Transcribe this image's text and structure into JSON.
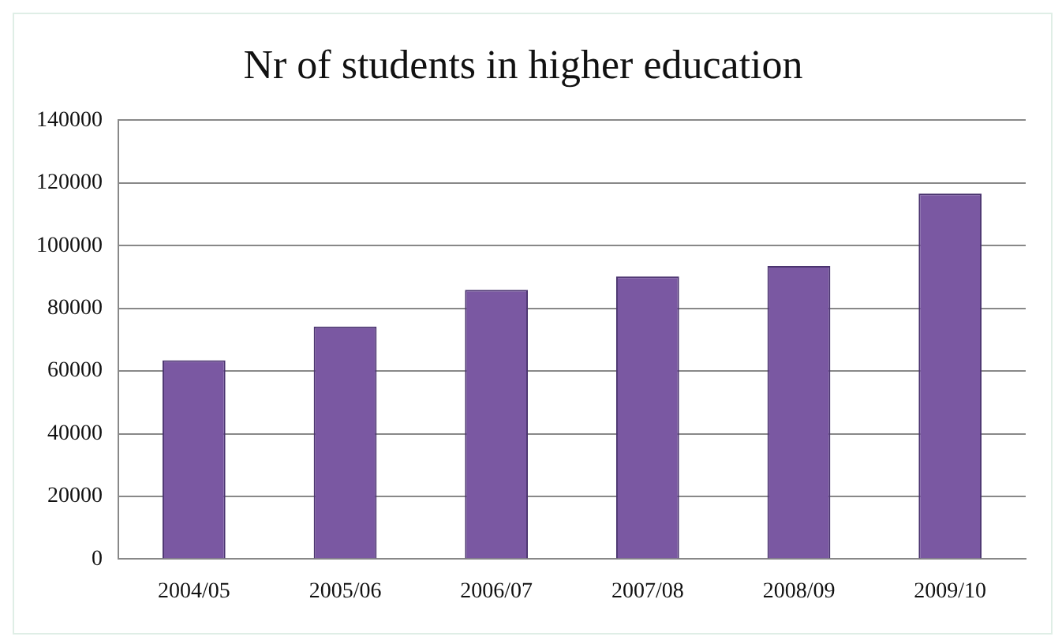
{
  "chart_data": {
    "type": "bar",
    "title": "Nr of students in higher education",
    "categories": [
      "2004/05",
      "2005/06",
      "2006/07",
      "2007/08",
      "2008/09",
      "2009/10"
    ],
    "values": [
      63400,
      74200,
      85900,
      90200,
      93500,
      116600
    ],
    "color": "#7a58a2",
    "ylim": [
      0,
      140000
    ],
    "yticks": [
      0,
      20000,
      40000,
      60000,
      80000,
      100000,
      120000,
      140000
    ],
    "grid": "y",
    "legend": false
  }
}
